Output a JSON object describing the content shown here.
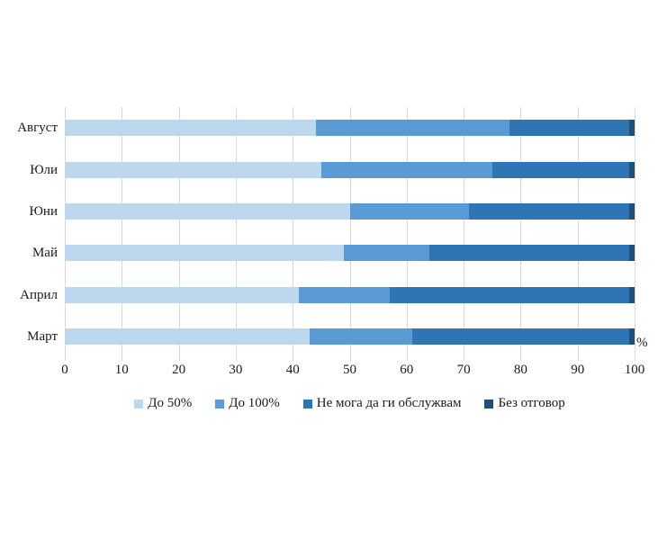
{
  "chart_data": {
    "type": "bar",
    "variant": "horizontal-stacked",
    "title": "",
    "categories": [
      "Август",
      "Юли",
      "Юни",
      "Май",
      "Април",
      "Март"
    ],
    "series": [
      {
        "name": "До 50%",
        "color": "#bdd7ee",
        "values": [
          44,
          45,
          50,
          49,
          41,
          43
        ]
      },
      {
        "name": "До 100%",
        "color": "#5b9bd5",
        "values": [
          34,
          30,
          21,
          15,
          16,
          18
        ]
      },
      {
        "name": "Не мога да ги обслужвам",
        "color": "#2e75b6",
        "values": [
          21,
          24,
          28,
          35,
          42,
          38
        ]
      },
      {
        "name": "Без отговор",
        "color": "#1f4e79",
        "values": [
          1,
          1,
          1,
          1,
          1,
          1
        ]
      }
    ],
    "x_axis": {
      "min": 0,
      "max": 100,
      "tick_step": 10,
      "tick_labels": [
        "0",
        "10",
        "20",
        "30",
        "40",
        "50",
        "60",
        "70",
        "80",
        "90",
        "100"
      ],
      "unit": "%"
    },
    "legend_position": "bottom",
    "grid": "vertical",
    "gridline_color": "#d9d9d9",
    "background_color": "#ffffff"
  }
}
